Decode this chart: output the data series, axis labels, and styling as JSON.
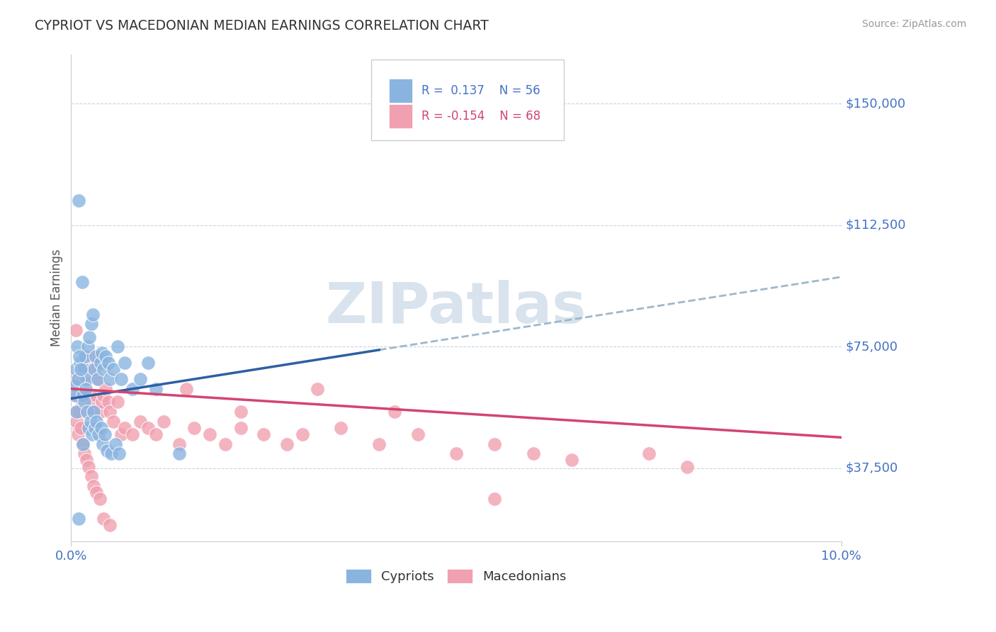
{
  "title": "CYPRIOT VS MACEDONIAN MEDIAN EARNINGS CORRELATION CHART",
  "source": "Source: ZipAtlas.com",
  "ylabel": "Median Earnings",
  "y_ticks": [
    37500,
    75000,
    112500,
    150000
  ],
  "y_tick_labels": [
    "$37,500",
    "$75,000",
    "$112,500",
    "$150,000"
  ],
  "xlim": [
    0.0,
    10.0
  ],
  "ylim": [
    15000,
    165000
  ],
  "cypriot_color": "#8ab4e0",
  "macedonian_color": "#f0a0b0",
  "cypriot_line_color": "#2e5fa3",
  "macedonian_line_color": "#d44470",
  "trend_ext_color": "#9db8cc",
  "background_color": "#ffffff",
  "grid_color": "#c8d4e0",
  "label_color": "#4472c4",
  "watermark_color": "#d4e0ec",
  "watermark": "ZIPatlas",
  "legend_R1": "R =  0.137",
  "legend_N1": "N = 56",
  "legend_R2": "R = -0.154",
  "legend_N2": "N = 68",
  "cypriot_x": [
    0.04,
    0.06,
    0.08,
    0.1,
    0.12,
    0.14,
    0.16,
    0.18,
    0.2,
    0.22,
    0.24,
    0.26,
    0.28,
    0.3,
    0.32,
    0.35,
    0.38,
    0.4,
    0.42,
    0.45,
    0.48,
    0.5,
    0.55,
    0.6,
    0.65,
    0.7,
    0.8,
    0.9,
    1.0,
    1.1,
    0.05,
    0.07,
    0.09,
    0.11,
    0.13,
    0.15,
    0.17,
    0.19,
    0.21,
    0.23,
    0.25,
    0.27,
    0.29,
    0.31,
    0.33,
    0.36,
    0.39,
    0.41,
    0.44,
    0.47,
    0.52,
    0.58,
    0.62,
    1.4,
    0.15,
    0.1
  ],
  "cypriot_y": [
    63000,
    68000,
    75000,
    120000,
    70000,
    95000,
    68000,
    72000,
    65000,
    75000,
    78000,
    82000,
    85000,
    68000,
    72000,
    65000,
    70000,
    73000,
    68000,
    72000,
    70000,
    65000,
    68000,
    75000,
    65000,
    70000,
    62000,
    65000,
    70000,
    62000,
    60000,
    55000,
    65000,
    72000,
    68000,
    60000,
    58000,
    62000,
    55000,
    50000,
    52000,
    48000,
    55000,
    50000,
    52000,
    48000,
    50000,
    45000,
    48000,
    43000,
    42000,
    45000,
    42000,
    42000,
    45000,
    22000
  ],
  "macedonian_x": [
    0.04,
    0.06,
    0.08,
    0.1,
    0.12,
    0.14,
    0.16,
    0.18,
    0.2,
    0.22,
    0.24,
    0.26,
    0.28,
    0.3,
    0.32,
    0.35,
    0.38,
    0.4,
    0.42,
    0.45,
    0.48,
    0.5,
    0.55,
    0.6,
    0.65,
    0.7,
    0.8,
    0.9,
    1.0,
    1.1,
    1.2,
    1.4,
    1.6,
    1.8,
    2.0,
    2.2,
    2.5,
    2.8,
    3.0,
    3.5,
    4.0,
    4.5,
    5.0,
    5.5,
    6.0,
    6.5,
    7.5,
    8.0,
    0.07,
    0.09,
    0.11,
    0.13,
    0.15,
    0.17,
    0.2,
    0.23,
    0.26,
    0.29,
    0.33,
    0.37,
    0.42,
    0.5,
    1.5,
    2.2,
    3.2,
    4.2,
    5.5,
    0.06
  ],
  "macedonian_y": [
    65000,
    55000,
    60000,
    50000,
    68000,
    58000,
    55000,
    72000,
    60000,
    65000,
    68000,
    58000,
    72000,
    55000,
    60000,
    65000,
    55000,
    58000,
    60000,
    62000,
    58000,
    55000,
    52000,
    58000,
    48000,
    50000,
    48000,
    52000,
    50000,
    48000,
    52000,
    45000,
    50000,
    48000,
    45000,
    50000,
    48000,
    45000,
    48000,
    50000,
    45000,
    48000,
    42000,
    45000,
    42000,
    40000,
    42000,
    38000,
    52000,
    48000,
    55000,
    50000,
    45000,
    42000,
    40000,
    38000,
    35000,
    32000,
    30000,
    28000,
    22000,
    20000,
    62000,
    55000,
    62000,
    55000,
    28000,
    80000
  ]
}
